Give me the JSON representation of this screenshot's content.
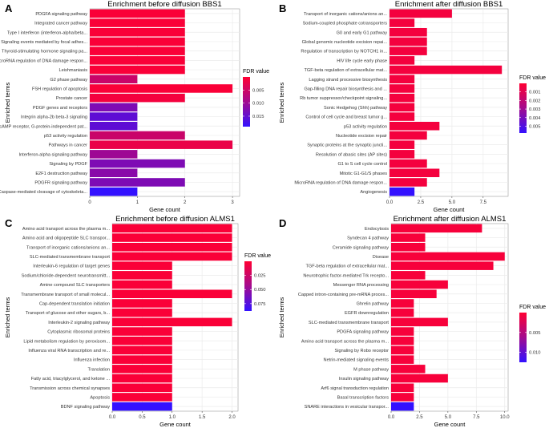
{
  "colors": {
    "low_fdr": "#ff0033",
    "high_fdr": "#3311ff",
    "grid": "#ebebeb",
    "panel_bg": "#ffffff",
    "axis": "#333333"
  },
  "legend_title": "FDR value",
  "xlabel": "Gene count",
  "ylabel": "Enriched terms",
  "chart_data": [
    {
      "type": "bar",
      "orientation": "horizontal",
      "letter": "A",
      "title": "Enrichment before diffusion BBS1",
      "xlim": [
        0,
        3.15
      ],
      "xticks": [
        0,
        1,
        2,
        3
      ],
      "fdr_range": [
        0.0,
        0.019
      ],
      "legend_ticks": [
        0.005,
        0.01,
        0.015
      ],
      "categories": [
        "PDGFA signaling pathway",
        "Integrated cancer pathway",
        "Type I interferon (interferon-alpha/beta...",
        "Signaling events mediated by focal adhes...",
        "Thyroid-stimulating hormone signaling pa...",
        "MicroRNA regulation of DNA damage respon...",
        "Leishmaniasis",
        "G2 phase pathway",
        "FSH regulation of apoptosis",
        "Prostate cancer",
        "PDGF genes and receptors",
        "Integrin alpha-2b beta-3 signaling",
        "cAMP receptor, G-protein-independent pat...",
        "p53 activity regulation",
        "Pathways in cancer",
        "Interferon-alpha signaling pathway",
        "Signaling by PDGF",
        "E2F1 destruction pathway",
        "PDGFR signaling pathway",
        "Caspase-mediated cleavage of cytoskeleta..."
      ],
      "values": [
        2,
        2,
        2,
        2,
        2,
        2,
        2,
        1,
        3,
        2,
        1,
        1,
        1,
        2,
        3,
        1,
        2,
        1,
        2,
        1
      ],
      "fdr": [
        0.0005,
        0.0005,
        0.0005,
        0.0005,
        0.0005,
        0.0005,
        0.0005,
        0.005,
        0.0005,
        0.001,
        0.012,
        0.015,
        0.015,
        0.005,
        0.002,
        0.009,
        0.012,
        0.011,
        0.012,
        0.019
      ]
    },
    {
      "type": "bar",
      "orientation": "horizontal",
      "letter": "B",
      "title": "Enrichment after diffusion BBS1",
      "xlim": [
        0,
        9.5
      ],
      "xticks": [
        0,
        2.5,
        5,
        7.5
      ],
      "xtick_labels": [
        "0.0",
        "2.5",
        "5.0",
        "7.5"
      ],
      "fdr_range": [
        0.0,
        0.0058
      ],
      "legend_ticks": [
        0.001,
        0.002,
        0.003,
        0.004,
        0.005
      ],
      "categories": [
        "Transport of inorganic cations/anions an...",
        "Sodium-coupled phosphate cotransporters",
        "G0 and early G1 pathway",
        "Global genomic nucleotide excision repai...",
        "Regulation of transcription by NOTCH1 in...",
        "HIV life cycle early phase",
        "TGF-beta regulation of extracellular mat...",
        "Lagging strand processive biosynthesis",
        "Gap-filling DNA repair biosynthesis and ...",
        "Rb tumor suppressor/checkpoint signaling...",
        "Sonic Hedgehog (Shh) pathway",
        "Control of cell cycle and breast tumor g...",
        "p53 activity regulation",
        "Nucleotide excision repair",
        "Synaptic proteins at the synaptic juncti...",
        "Resolution of abasic sites (AP sites)",
        "G1 to S cell cycle control",
        "Mitotic G1-G1/S phases",
        "MicroRNA regulation of DNA damage respon...",
        "Angiogenesis"
      ],
      "values": [
        5,
        2,
        3,
        3,
        3,
        2,
        9,
        2,
        2,
        2,
        2,
        2,
        4,
        3,
        2,
        2,
        3,
        4,
        3,
        2
      ],
      "fdr": [
        0.0003,
        0.0003,
        0.0003,
        0.0003,
        0.0003,
        0.0003,
        0.0003,
        0.0003,
        0.0003,
        0.0003,
        0.0003,
        0.0003,
        0.0003,
        0.0003,
        0.0003,
        0.0003,
        0.0003,
        0.0003,
        0.0003,
        0.0058
      ]
    },
    {
      "type": "bar",
      "orientation": "horizontal",
      "letter": "C",
      "title": "Enrichment before diffusion ALMS1",
      "xlim": [
        0,
        2.1
      ],
      "xticks": [
        0,
        0.5,
        1,
        1.5,
        2
      ],
      "xtick_labels": [
        "0.0",
        "0.5",
        "1.0",
        "1.5",
        "2.0"
      ],
      "fdr_range": [
        0.0,
        0.088
      ],
      "legend_ticks": [
        0.025,
        0.05,
        0.075
      ],
      "categories": [
        "Amino acid transport across the plasma m...",
        "Amino acid and oligopeptide SLC transpor...",
        "Transport of inorganic cations/anions an...",
        "SLC-mediated transmembrane transport",
        "Interleukin-6 regulation of target genes",
        "Sodium/chloride-dependent neurotransmitt...",
        "Amine compound SLC transporters",
        "Transmembrane transport of small molecul...",
        "Cap-dependent translation initiation",
        "Transport of glucose and other sugars, b...",
        "Interleukin-2 signaling pathway",
        "Cytoplasmic ribosomal proteins",
        "Lipid metabolism regulation by peroxisom...",
        "Influenza viral RNA transcription and re...",
        "Influenza infection",
        "Translation",
        "Fatty acid, triacylglycerol, and ketone ...",
        "Transmission across chemical synapses",
        "Apoptosis",
        "BDNF signaling pathway"
      ],
      "values": [
        2,
        2,
        2,
        2,
        1,
        1,
        1,
        2,
        1,
        1,
        2,
        1,
        1,
        1,
        1,
        1,
        1,
        1,
        1,
        1
      ],
      "fdr": [
        0.002,
        0.002,
        0.002,
        0.002,
        0.002,
        0.002,
        0.002,
        0.002,
        0.002,
        0.002,
        0.002,
        0.002,
        0.002,
        0.002,
        0.002,
        0.002,
        0.002,
        0.002,
        0.002,
        0.088
      ]
    },
    {
      "type": "bar",
      "orientation": "horizontal",
      "letter": "D",
      "title": "Enrichment after diffusion ALMS1",
      "xlim": [
        0,
        10.3
      ],
      "xticks": [
        0,
        2.5,
        5,
        7.5,
        10
      ],
      "xtick_labels": [
        "0.0",
        "2.5",
        "5.0",
        "7.5",
        "10.0"
      ],
      "fdr_range": [
        0.0,
        0.0125
      ],
      "legend_ticks": [
        0.005,
        0.01
      ],
      "categories": [
        "Endocytosis",
        "Syndecan 4 pathway",
        "Ceramide signaling pathway",
        "Disease",
        "TGF-beta regulation of extracellular mat...",
        "Neurotrophic factor-mediated Trk recepto...",
        "Messenger RNA processing",
        "Capped intron-containing pre-mRNA proces...",
        "Ghrelin pathway",
        "EGFR downregulation",
        "SLC-mediated transmembrane transport",
        "PDGFA signaling pathway",
        "Amino acid transport across the plasma m...",
        "Signaling by Robo receptor",
        "Netrin-mediated signaling events",
        "M phase pathway",
        "Insulin signaling pathway",
        "Arf6 signal transduction regulation",
        "Basal transcription factors",
        "SNARE interactions in vesicular transpor..."
      ],
      "values": [
        8,
        3,
        3,
        10,
        9,
        3,
        5,
        4,
        2,
        2,
        5,
        2,
        2,
        2,
        2,
        3,
        5,
        2,
        2,
        2
      ],
      "fdr": [
        0.0005,
        0.0005,
        0.0005,
        0.0005,
        0.0005,
        0.0005,
        0.0005,
        0.0005,
        0.0005,
        0.0005,
        0.0005,
        0.0005,
        0.0005,
        0.0005,
        0.0005,
        0.0005,
        0.0005,
        0.0005,
        0.0005,
        0.0125
      ]
    }
  ]
}
